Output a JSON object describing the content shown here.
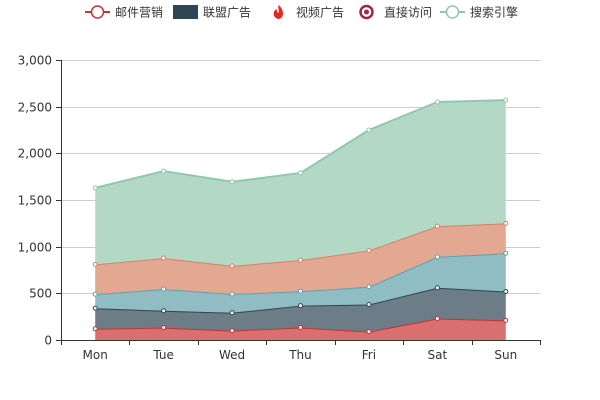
{
  "chart_data": {
    "type": "area",
    "stacked": true,
    "categories": [
      "Mon",
      "Tue",
      "Wed",
      "Thu",
      "Fri",
      "Sat",
      "Sun"
    ],
    "ylim": [
      0,
      3000
    ],
    "yticks": [
      0,
      500,
      1000,
      1500,
      2000,
      2500,
      3000
    ],
    "ytick_labels": [
      "0",
      "500",
      "1,000",
      "1,500",
      "2,000",
      "2,500",
      "3,000"
    ],
    "grid": true,
    "legend_position": "top-center",
    "series": [
      {
        "name": "邮件营销",
        "values": [
          120,
          132,
          101,
          134,
          90,
          230,
          210
        ],
        "line_color": "#c23531",
        "area_color": "#d87070",
        "legend_icon": "circle"
      },
      {
        "name": "联盟广告",
        "values": [
          220,
          182,
          191,
          234,
          290,
          330,
          310
        ],
        "line_color": "#2f4554",
        "area_color": "#6d7d88",
        "legend_icon": "rect"
      },
      {
        "name": "视频广告",
        "values": [
          150,
          232,
          201,
          154,
          190,
          330,
          410
        ],
        "line_color": "#61a0a8",
        "area_color": "#90bdc3",
        "legend_icon": "flame"
      },
      {
        "name": "直接访问",
        "values": [
          320,
          332,
          301,
          334,
          390,
          330,
          320
        ],
        "line_color": "#d48265",
        "area_color": "#e3a892",
        "legend_icon": "ring"
      },
      {
        "name": "搜索引擎",
        "values": [
          820,
          932,
          901,
          934,
          1290,
          1330,
          1320
        ],
        "line_color": "#91c7ae",
        "area_color": "#b3d9c6",
        "legend_icon": "circle"
      }
    ]
  }
}
